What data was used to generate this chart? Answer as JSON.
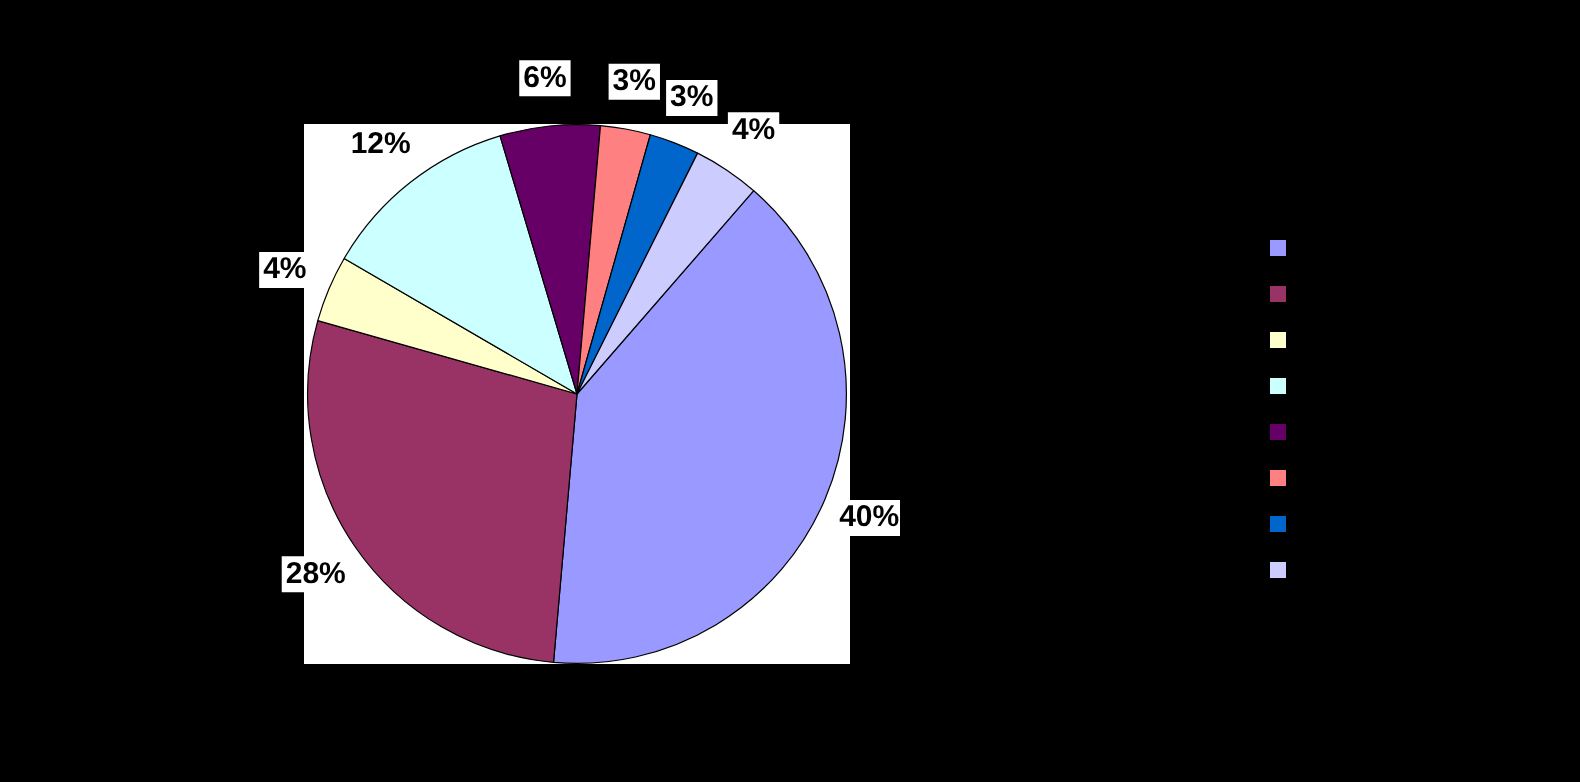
{
  "chart_data": {
    "type": "pie",
    "categories": [
      null,
      null,
      null,
      null,
      null,
      null,
      null,
      null
    ],
    "values": [
      40,
      28,
      4,
      12,
      6,
      3,
      3,
      4
    ],
    "value_labels": [
      "40%",
      "28%",
      "4%",
      "12%",
      "6%",
      "3%",
      "3%",
      "4%"
    ],
    "colors": [
      "#9999ff",
      "#993366",
      "#ffffcc",
      "#ccffff",
      "#660066",
      "#ff8080",
      "#0066cc",
      "#ccccff"
    ]
  }
}
